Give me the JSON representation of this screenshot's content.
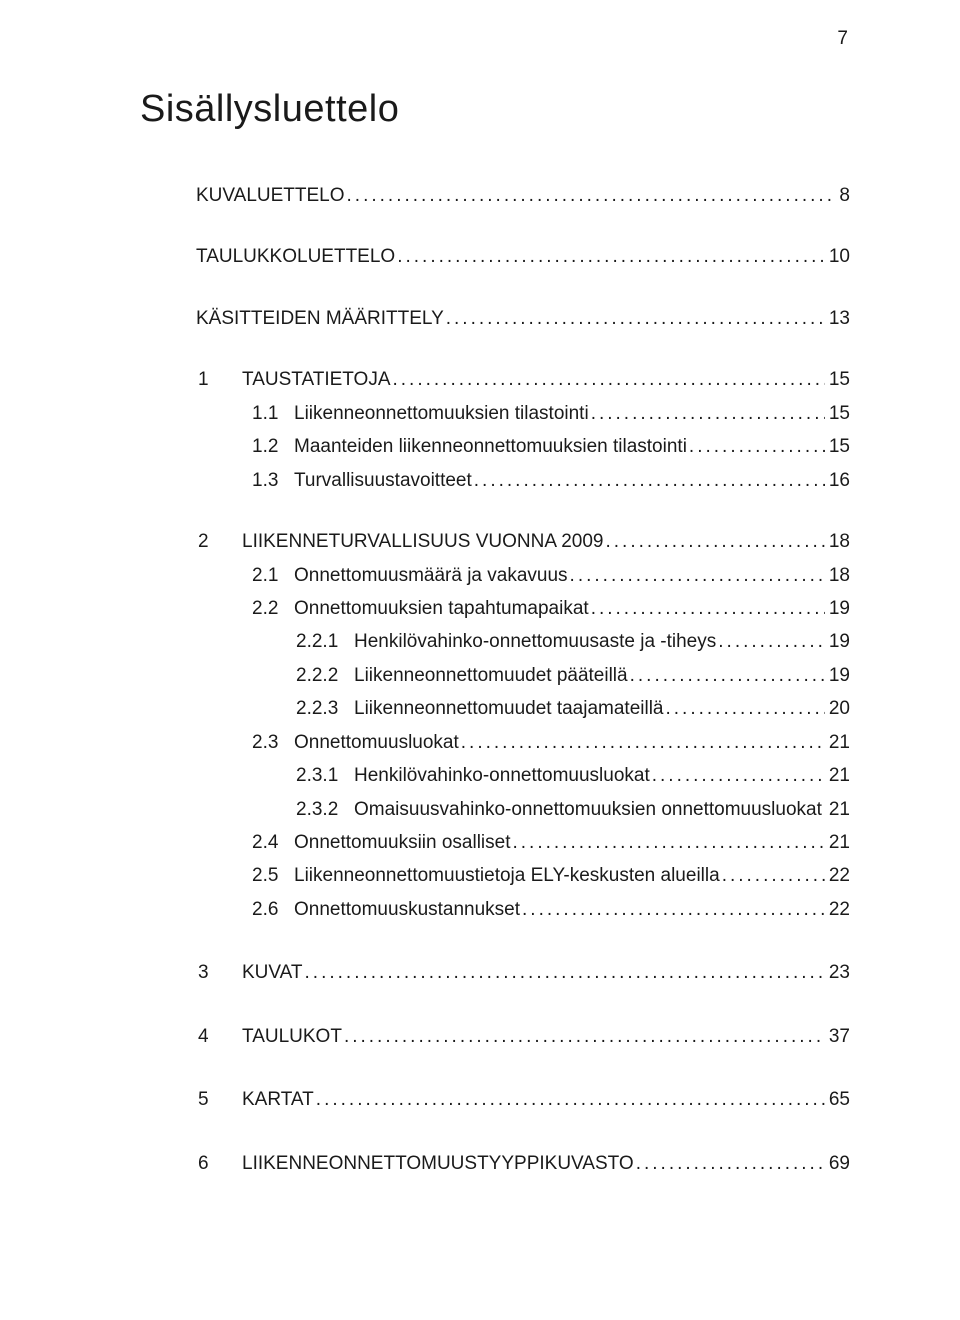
{
  "page_number": "7",
  "title": "Sisällysluettelo",
  "entries": [
    {
      "level": 0,
      "num": "",
      "label": "KUVALUETTELO",
      "page": "8",
      "gap_after": "large"
    },
    {
      "level": 0,
      "num": "",
      "label": "TAULUKKOLUETTELO",
      "page": "10",
      "gap_after": "large"
    },
    {
      "level": 0,
      "num": "",
      "label": "KÄSITTEIDEN MÄÄRITTELY",
      "page": "13",
      "gap_after": "large"
    },
    {
      "level": 1,
      "num": "1",
      "label": "TAUSTATIETOJA",
      "page": "15"
    },
    {
      "level": 2,
      "num": "1.1",
      "label": "Liikenneonnettomuuksien tilastointi",
      "page": "15"
    },
    {
      "level": 2,
      "num": "1.2",
      "label": "Maanteiden liikenneonnettomuuksien tilastointi",
      "page": "15"
    },
    {
      "level": 2,
      "num": "1.3",
      "label": "Turvallisuustavoitteet",
      "page": "16",
      "gap_after": "large"
    },
    {
      "level": 1,
      "num": "2",
      "label": "LIIKENNETURVALLISUUS VUONNA 2009",
      "page": "18"
    },
    {
      "level": 2,
      "num": "2.1",
      "label": "Onnettomuusmäärä ja vakavuus",
      "page": "18"
    },
    {
      "level": 2,
      "num": "2.2",
      "label": "Onnettomuuksien tapahtumapaikat",
      "page": "19"
    },
    {
      "level": 3,
      "num": "2.2.1",
      "label": "Henkilövahinko-onnettomuusaste ja -tiheys",
      "page": "19"
    },
    {
      "level": 3,
      "num": "2.2.2",
      "label": "Liikenneonnettomuudet pääteillä",
      "page": "19"
    },
    {
      "level": 3,
      "num": "2.2.3",
      "label": "Liikenneonnettomuudet taajamateillä",
      "page": "20"
    },
    {
      "level": 2,
      "num": "2.3",
      "label": "Onnettomuusluokat",
      "page": "21"
    },
    {
      "level": 3,
      "num": "2.3.1",
      "label": "Henkilövahinko-onnettomuusluokat",
      "page": "21"
    },
    {
      "level": 3,
      "num": "2.3.2",
      "label": "Omaisuusvahinko-onnettomuuksien onnettomuusluokat",
      "page": "21"
    },
    {
      "level": 2,
      "num": "2.4",
      "label": "Onnettomuuksiin osalliset",
      "page": "21"
    },
    {
      "level": 2,
      "num": "2.5",
      "label": "Liikenneonnettomuustietoja ELY-keskusten alueilla",
      "page": "22"
    },
    {
      "level": 2,
      "num": "2.6",
      "label": "Onnettomuuskustannukset",
      "page": "22",
      "gap_after": "xlarge"
    },
    {
      "level": 1,
      "num": "3",
      "label": "KUVAT",
      "page": "23",
      "gap_after": "xlarge"
    },
    {
      "level": 1,
      "num": "4",
      "label": "TAULUKOT",
      "page": "37",
      "gap_after": "xlarge"
    },
    {
      "level": 1,
      "num": "5",
      "label": "KARTAT",
      "page": "65",
      "gap_after": "xlarge"
    },
    {
      "level": 1,
      "num": "6",
      "label": "LIIKENNEONNETTOMUUSTYYPPIKUVASTO",
      "page": "69"
    }
  ]
}
